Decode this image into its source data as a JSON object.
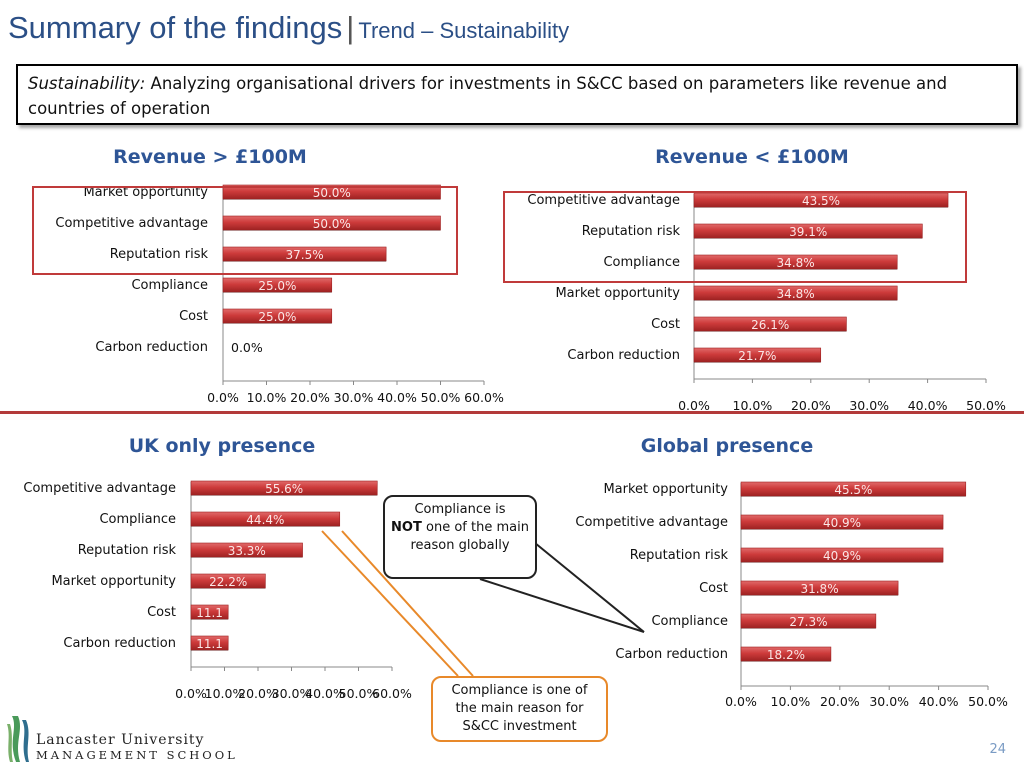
{
  "slide": {
    "title_main": "Summary of the findings",
    "title_sep": "|",
    "title_sub": "Trend – Sustainability",
    "banner_label": "Sustainability:",
    "banner_text": " Analyzing organisational drivers for investments in S&CC based on parameters like revenue and countries of operation",
    "page_number": "24",
    "logo_line1": "Lancaster University",
    "logo_line2": "MANAGEMENT SCHOOL"
  },
  "callouts": {
    "black_pre": "Compliance is",
    "black_bold": "NOT",
    "black_post": "one of the main reason globally",
    "orange": "Compliance is one of the main reason for S&CC investment"
  },
  "colors": {
    "bar": "#cd3b3b",
    "bar_dark": "#9e2222",
    "highlight": "#c03a3a",
    "arrow": "#e8892a",
    "heading": "#2e5596"
  },
  "chart_data": [
    {
      "type": "bar",
      "orientation": "horizontal",
      "title": "Revenue > £100M",
      "categories": [
        "Market opportunity",
        "Competitive advantage",
        "Reputation risk",
        "Compliance",
        "Cost",
        "Carbon reduction"
      ],
      "values": [
        50.0,
        50.0,
        37.5,
        25.0,
        25.0,
        0.0
      ],
      "data_labels": [
        "50.0%",
        "50.0%",
        "37.5%",
        "25.0%",
        "25.0%",
        "0.0%"
      ],
      "ticks": [
        "0.0%",
        "10.0%",
        "20.0%",
        "30.0%",
        "40.0%",
        "50.0%",
        "60.0%"
      ],
      "xlim": [
        0,
        60
      ],
      "highlight_count": 3
    },
    {
      "type": "bar",
      "orientation": "horizontal",
      "title": "Revenue < £100M",
      "categories": [
        "Competitive advantage",
        "Reputation risk",
        "Compliance",
        "Market opportunity",
        "Cost",
        "Carbon reduction"
      ],
      "values": [
        43.5,
        39.1,
        34.8,
        34.8,
        26.1,
        21.7
      ],
      "data_labels": [
        "43.5%",
        "39.1%",
        "34.8%",
        "34.8%",
        "26.1%",
        "21.7%"
      ],
      "ticks": [
        "0.0%",
        "10.0%",
        "20.0%",
        "30.0%",
        "40.0%",
        "50.0%"
      ],
      "xlim": [
        0,
        50
      ],
      "highlight_count": 3
    },
    {
      "type": "bar",
      "orientation": "horizontal",
      "title": "UK only presence",
      "categories": [
        "Competitive advantage",
        "Compliance",
        "Reputation risk",
        "Market opportunity",
        "Cost",
        "Carbon reduction"
      ],
      "values": [
        55.6,
        44.4,
        33.3,
        22.2,
        11.1,
        11.1
      ],
      "data_labels": [
        "55.6%",
        "44.4%",
        "33.3%",
        "22.2%",
        "11.1",
        "11.1"
      ],
      "ticks": [
        "0.0%",
        "10.0%",
        "20.0%",
        "30.0%",
        "40.0%",
        "50.0%",
        "60.0%"
      ],
      "xlim": [
        0,
        60
      ],
      "highlight_count": 0
    },
    {
      "type": "bar",
      "orientation": "horizontal",
      "title": "Global presence",
      "categories": [
        "Market opportunity",
        "Competitive advantage",
        "Reputation risk",
        "Cost",
        "Compliance",
        "Carbon reduction"
      ],
      "values": [
        45.5,
        40.9,
        40.9,
        31.8,
        27.3,
        18.2
      ],
      "data_labels": [
        "45.5%",
        "40.9%",
        "40.9%",
        "31.8%",
        "27.3%",
        "18.2%"
      ],
      "ticks": [
        "0.0%",
        "10.0%",
        "20.0%",
        "30.0%",
        "40.0%",
        "50.0%"
      ],
      "xlim": [
        0,
        50
      ],
      "highlight_count": 0
    }
  ]
}
